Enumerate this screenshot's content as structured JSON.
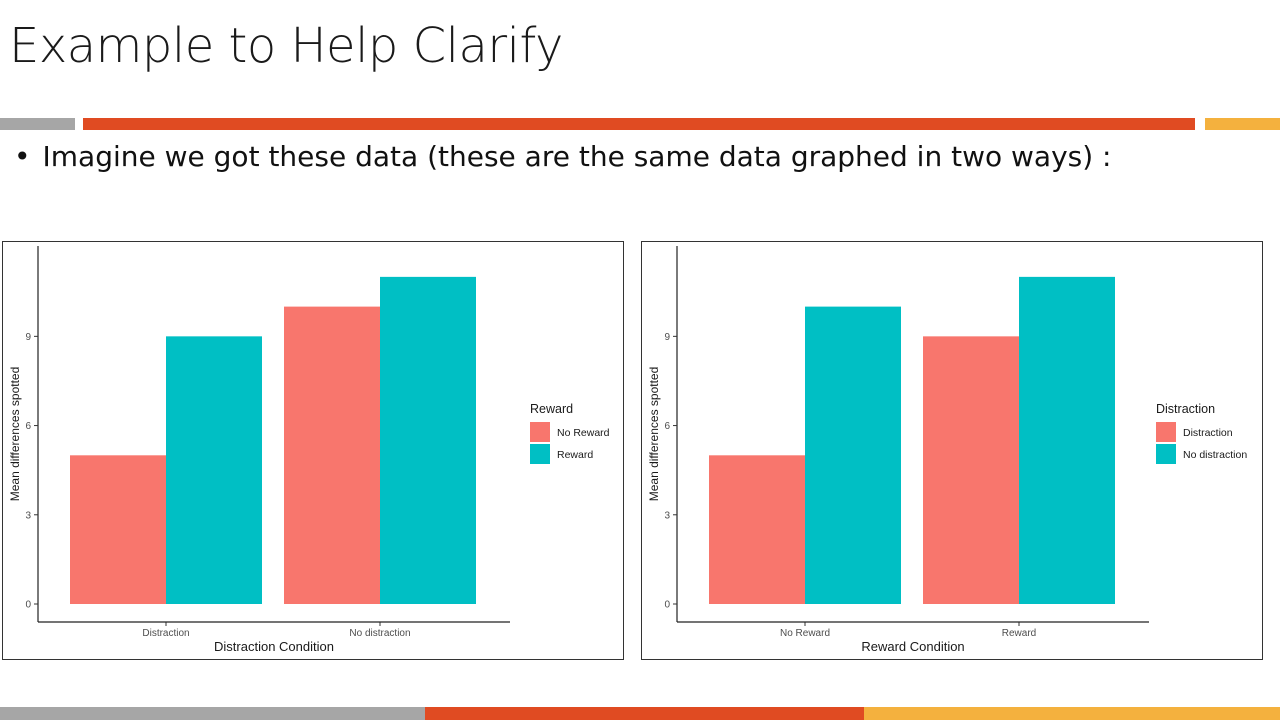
{
  "slide": {
    "title": "Example to Help Clarify",
    "bullet": "Imagine we got these data (these are the same data graphed in two ways) :"
  },
  "colors": {
    "gray": "#a6a6a6",
    "red": "#e04b22",
    "orange": "#f4b13e",
    "series_coral": "#f8766d",
    "series_teal": "#00bfc4"
  },
  "chart_data": [
    {
      "type": "bar",
      "xlabel": "Distraction Condition",
      "ylabel": "Mean differences spotted",
      "categories": [
        "Distraction",
        "No distraction"
      ],
      "ylim": [
        0,
        11.5
      ],
      "yticks": [
        0,
        3,
        6,
        9
      ],
      "legend_title": "Reward",
      "legend_position": "right",
      "grid": false,
      "series": [
        {
          "name": "No Reward",
          "color": "#f8766d",
          "values": [
            5,
            10
          ]
        },
        {
          "name": "Reward",
          "color": "#00bfc4",
          "values": [
            9,
            11
          ]
        }
      ]
    },
    {
      "type": "bar",
      "xlabel": "Reward Condition",
      "ylabel": "Mean differences spotted",
      "categories": [
        "No Reward",
        "Reward"
      ],
      "ylim": [
        0,
        11.5
      ],
      "yticks": [
        0,
        3,
        6,
        9
      ],
      "legend_title": "Distraction",
      "legend_position": "right",
      "grid": false,
      "series": [
        {
          "name": "Distraction",
          "color": "#f8766d",
          "values": [
            5,
            9
          ]
        },
        {
          "name": "No distraction",
          "color": "#00bfc4",
          "values": [
            10,
            11
          ]
        }
      ]
    }
  ]
}
